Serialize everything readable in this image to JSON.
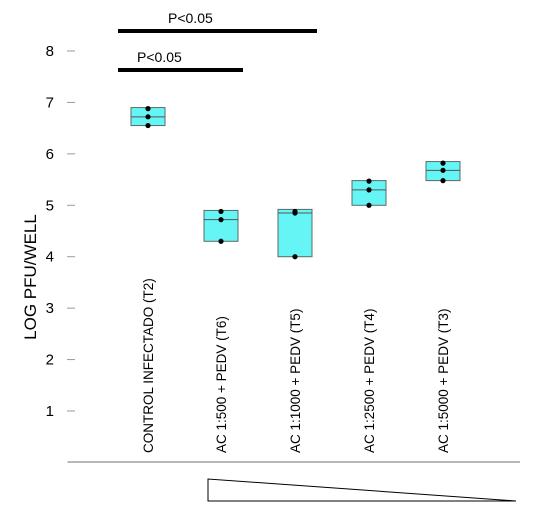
{
  "chart_data": {
    "type": "box",
    "ylabel": "LOG PFU/WELL",
    "ylim": [
      0,
      8
    ],
    "yticks": [
      1,
      2,
      3,
      4,
      5,
      6,
      7,
      8
    ],
    "box_color": "#66f5f5",
    "categories": [
      "CONTROL INFECTADO (T2)",
      "AC 1:500 + PEDV (T6)",
      "AC 1:1000 + PEDV (T5)",
      "AC 1:2500 + PEDV (T4)",
      "AC 1:5000 + PEDV (T3)"
    ],
    "boxes": [
      {
        "q1": 6.55,
        "median": 6.72,
        "q3": 6.9,
        "points": [
          6.55,
          6.72,
          6.88
        ]
      },
      {
        "q1": 4.3,
        "median": 4.72,
        "q3": 4.9,
        "points": [
          4.3,
          4.72,
          4.88
        ]
      },
      {
        "q1": 4.0,
        "median": 4.85,
        "q3": 4.92,
        "points": [
          4.0,
          4.85,
          4.88
        ]
      },
      {
        "q1": 5.0,
        "median": 5.3,
        "q3": 5.48,
        "points": [
          5.0,
          5.3,
          5.47
        ]
      },
      {
        "q1": 5.48,
        "median": 5.68,
        "q3": 5.85,
        "points": [
          5.48,
          5.68,
          5.82
        ]
      }
    ],
    "significance": [
      {
        "label": "P<0.05",
        "from": 0,
        "to": 2
      },
      {
        "label": "P<0.05",
        "from": 0,
        "to": 1
      }
    ],
    "dose_gradient": "decreasing"
  }
}
